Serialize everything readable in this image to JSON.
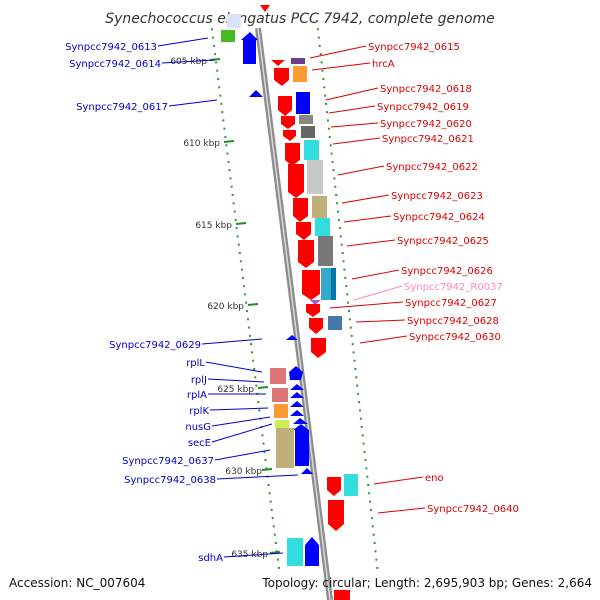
{
  "title": "Synechococcus elongatus PCC 7942, complete genome",
  "footer": {
    "accession": "Accession: NC_007604",
    "summary": "Topology: circular; Length: 2,695,903 bp; Genes: 2,664"
  },
  "colors": {
    "forward_label": "#0000cc",
    "reverse_label": "#dd0000",
    "rna_label": "#ff88bb",
    "forward_gene": "#0000ff",
    "reverse_gene": "#ff0000",
    "backbone": "#8c8c8c",
    "tick": "#1f8f1f"
  },
  "ticks": [
    {
      "label": "605 kbp"
    },
    {
      "label": "610 kbp"
    },
    {
      "label": "615 kbp"
    },
    {
      "label": "620 kbp"
    },
    {
      "label": "625 kbp"
    },
    {
      "label": "630 kbp"
    },
    {
      "label": "635 kbp"
    }
  ],
  "labels_left": [
    "Synpcc7942_0613",
    "Synpcc7942_0614",
    "Synpcc7942_0617",
    "Synpcc7942_0629",
    "rplL",
    "rplJ",
    "rplA",
    "rplK",
    "nusG",
    "secE",
    "Synpcc7942_0637",
    "Synpcc7942_0638",
    "sdhA"
  ],
  "labels_right": [
    "Synpcc7942_0615",
    "hrcA",
    "Synpcc7942_0618",
    "Synpcc7942_0619",
    "Synpcc7942_0620",
    "Synpcc7942_0621",
    "Synpcc7942_0622",
    "Synpcc7942_0623",
    "Synpcc7942_0624",
    "Synpcc7942_0625",
    "Synpcc7942_0626",
    "Synpcc7942_R0037",
    "Synpcc7942_0627",
    "Synpcc7942_0628",
    "Synpcc7942_0630",
    "eno",
    "Synpcc7942_0640"
  ]
}
